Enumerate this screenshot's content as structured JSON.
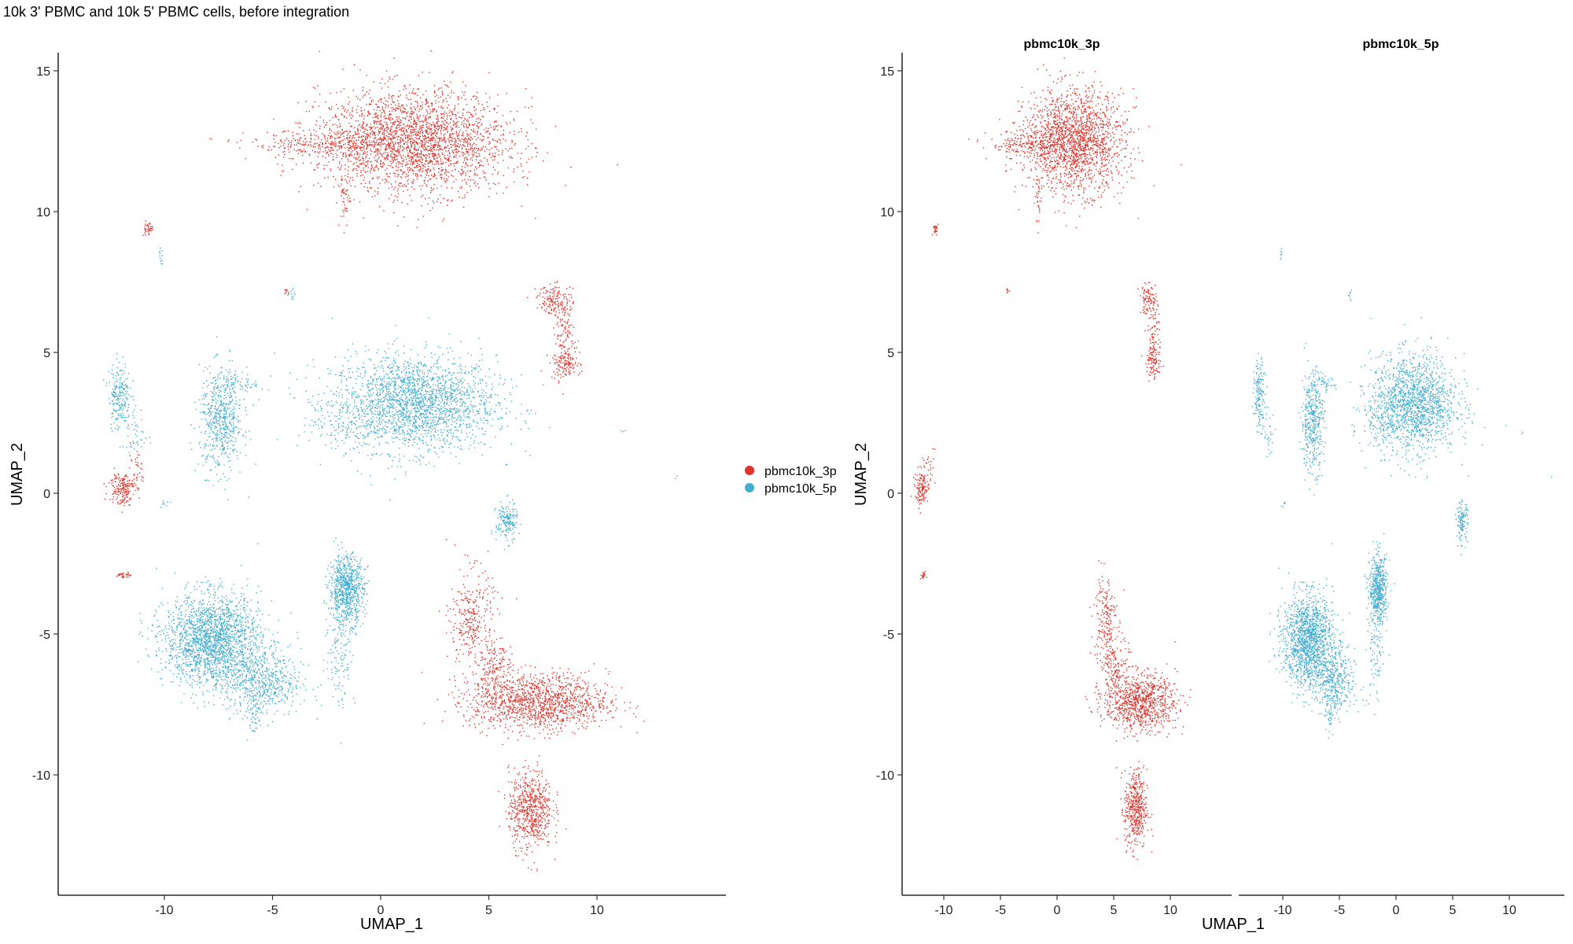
{
  "title": "10k 3' PBMC and 10k 5' PBMC cells, before integration",
  "colors": {
    "pbmc10k_3p": "#e0332b",
    "pbmc10k_5p": "#45aed0"
  },
  "legend": [
    {
      "label": "pbmc10k_3p",
      "color": "#e0332b"
    },
    {
      "label": "pbmc10k_5p",
      "color": "#45aed0"
    }
  ],
  "chart_data": [
    {
      "type": "scatter",
      "panel": "combined",
      "xlabel": "UMAP_1",
      "ylabel": "UMAP_2",
      "xlim": [
        -14,
        15
      ],
      "ylim": [
        -14,
        15.5
      ],
      "x_ticks": [
        -10,
        -5,
        0,
        5,
        10
      ],
      "y_ticks": [
        -10,
        -5,
        0,
        5,
        10,
        15
      ],
      "grid": false,
      "legend_position": "right",
      "series": [
        {
          "name": "pbmc10k_3p",
          "color": "#e0332b"
        },
        {
          "name": "pbmc10k_5p",
          "color": "#45aed0"
        }
      ]
    },
    {
      "type": "scatter",
      "panel": "split",
      "facets": [
        "pbmc10k_3p",
        "pbmc10k_5p"
      ],
      "xlabel": "UMAP_1",
      "ylabel": "UMAP_2",
      "xlim": [
        -14,
        15
      ],
      "ylim": [
        -14,
        15.5
      ],
      "x_ticks": [
        -10,
        -5,
        0,
        5,
        10
      ],
      "y_ticks": [
        -10,
        -5,
        0,
        5,
        10,
        15
      ],
      "grid": false,
      "clusters": {
        "pbmc10k_3p": [
          {
            "cx": 1.5,
            "cy": 12.5,
            "sx": 2.2,
            "sy": 0.9,
            "n": 2600
          },
          {
            "cx": -2.5,
            "cy": 12.4,
            "sx": 1.8,
            "sy": 0.25,
            "n": 300
          },
          {
            "cx": -1.7,
            "cy": 10.4,
            "sx": 0.12,
            "sy": 0.5,
            "n": 40
          },
          {
            "cx": -10.8,
            "cy": 9.4,
            "sx": 0.12,
            "sy": 0.12,
            "n": 40
          },
          {
            "cx": -4.4,
            "cy": 7.2,
            "sx": 0.05,
            "sy": 0.05,
            "n": 10
          },
          {
            "cx": 8.0,
            "cy": 6.9,
            "sx": 0.4,
            "sy": 0.25,
            "n": 140
          },
          {
            "cx": 8.5,
            "cy": 5.6,
            "sx": 0.25,
            "sy": 0.7,
            "n": 140
          },
          {
            "cx": 8.5,
            "cy": 4.6,
            "sx": 0.35,
            "sy": 0.25,
            "n": 110
          },
          {
            "cx": -12.0,
            "cy": 0.2,
            "sx": 0.3,
            "sy": 0.3,
            "n": 180
          },
          {
            "cx": -11.4,
            "cy": 0.9,
            "sx": 0.3,
            "sy": 0.4,
            "n": 40
          },
          {
            "cx": -11.9,
            "cy": -2.9,
            "sx": 0.15,
            "sy": 0.06,
            "n": 30
          },
          {
            "cx": 4.2,
            "cy": -4.5,
            "sx": 0.5,
            "sy": 0.9,
            "n": 300
          },
          {
            "cx": 5.3,
            "cy": -6.3,
            "sx": 0.5,
            "sy": 0.6,
            "n": 200
          },
          {
            "cx": 7.3,
            "cy": -7.4,
            "sx": 1.6,
            "sy": 0.5,
            "n": 1300
          },
          {
            "cx": 6.9,
            "cy": -11.2,
            "sx": 0.5,
            "sy": 0.7,
            "n": 650
          }
        ],
        "pbmc10k_5p": [
          {
            "cx": 1.5,
            "cy": 3.2,
            "sx": 1.9,
            "sy": 0.85,
            "n": 2300
          },
          {
            "cx": -1.7,
            "cy": 2.5,
            "sx": 0.8,
            "sy": 0.4,
            "n": 90
          },
          {
            "cx": -10.2,
            "cy": 8.4,
            "sx": 0.05,
            "sy": 0.15,
            "n": 12
          },
          {
            "cx": -4.1,
            "cy": 7.1,
            "sx": 0.1,
            "sy": 0.1,
            "n": 12
          },
          {
            "cx": -12.1,
            "cy": 3.5,
            "sx": 0.25,
            "sy": 0.6,
            "n": 220
          },
          {
            "cx": -11.3,
            "cy": 2.1,
            "sx": 0.25,
            "sy": 0.5,
            "n": 40
          },
          {
            "cx": -7.4,
            "cy": 2.6,
            "sx": 0.5,
            "sy": 0.9,
            "n": 600
          },
          {
            "cx": -6.4,
            "cy": 3.9,
            "sx": 0.5,
            "sy": 0.15,
            "n": 60
          },
          {
            "cx": 5.8,
            "cy": -1.0,
            "sx": 0.25,
            "sy": 0.35,
            "n": 180
          },
          {
            "cx": -1.6,
            "cy": -3.4,
            "sx": 0.4,
            "sy": 0.6,
            "n": 800
          },
          {
            "cx": -1.9,
            "cy": -5.8,
            "sx": 0.35,
            "sy": 0.9,
            "n": 120
          },
          {
            "cx": -7.8,
            "cy": -5.2,
            "sx": 1.1,
            "sy": 0.8,
            "n": 2100
          },
          {
            "cx": -5.5,
            "cy": -6.7,
            "sx": 0.9,
            "sy": 0.6,
            "n": 600
          },
          {
            "cx": -5.9,
            "cy": -7.8,
            "sx": 0.2,
            "sy": 0.4,
            "n": 50
          },
          {
            "cx": -10.0,
            "cy": -0.3,
            "sx": 0.1,
            "sy": 0.1,
            "n": 8
          },
          {
            "cx": 11.2,
            "cy": 2.2,
            "sx": 0.05,
            "sy": 0.05,
            "n": 3
          },
          {
            "cx": 13.6,
            "cy": 0.6,
            "sx": 0.05,
            "sy": 0.05,
            "n": 2
          }
        ]
      }
    }
  ]
}
